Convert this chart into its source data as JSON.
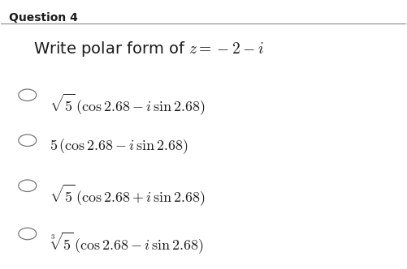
{
  "background_color": "#ffffff",
  "question_label": "Question 4",
  "question_text": "Write polar form of $z = -2 - i$",
  "options": [
    "$\\sqrt{5}\\,(\\cos 2.68 - i\\,\\sin 2.68)$",
    "$5\\,(\\cos 2.68 - i\\,\\sin 2.68)$",
    "$\\sqrt{5}\\,(\\cos 2.68 + i\\,\\sin 2.68)$",
    "$\\sqrt[3]{5}\\,(\\cos 2.68 - i\\,\\sin 2.68)$"
  ],
  "text_color": "#1a1a1a",
  "question_fontsize": 14,
  "option_fontsize": 13,
  "title_fontsize": 10,
  "fig_width": 5.01,
  "fig_height": 3.32,
  "dpi": 100
}
